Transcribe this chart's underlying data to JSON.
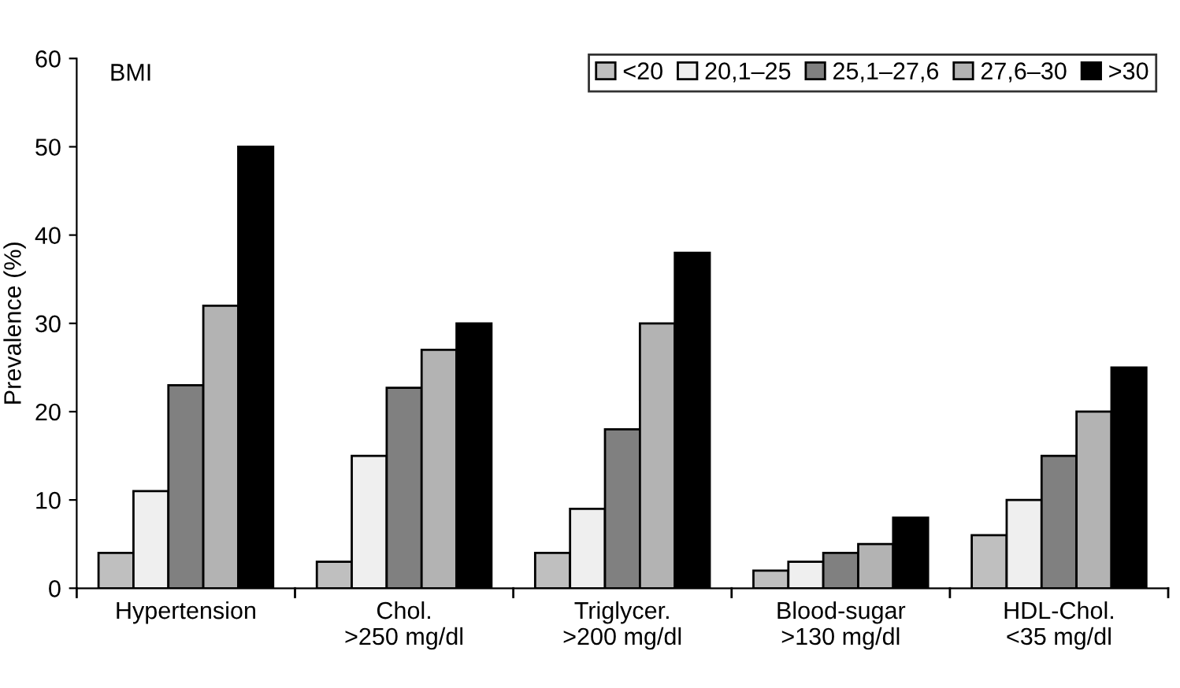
{
  "chart_data": {
    "type": "bar",
    "ylabel": "Prevalence (%)",
    "legend_title": "BMI",
    "categories": [
      "Hypertension",
      "Chol.\n>250 mg/dl",
      "Triglycer.\n>200 mg/dl",
      "Blood-sugar\n>130 mg/dl",
      "HDL-Chol.\n<35 mg/dl"
    ],
    "series": [
      {
        "name": "<20",
        "color": "#bfbfbf",
        "values": [
          4,
          3,
          4,
          2,
          6
        ]
      },
      {
        "name": "20,1–25",
        "color": "#efefef",
        "values": [
          11,
          15,
          9,
          3,
          10
        ]
      },
      {
        "name": "25,1–27,6",
        "color": "#808080",
        "values": [
          23,
          22.7,
          18,
          4,
          15
        ]
      },
      {
        "name": "27,6–30",
        "color": "#b3b3b3",
        "values": [
          32,
          27,
          30,
          5,
          20
        ]
      },
      {
        "name": ">30",
        "color": "#000000",
        "values": [
          50,
          30,
          38,
          8,
          25
        ]
      }
    ],
    "ylim": [
      0,
      60
    ],
    "yticks": [
      0,
      10,
      20,
      30,
      40,
      50,
      60
    ],
    "grid": false,
    "legend": "top right"
  }
}
